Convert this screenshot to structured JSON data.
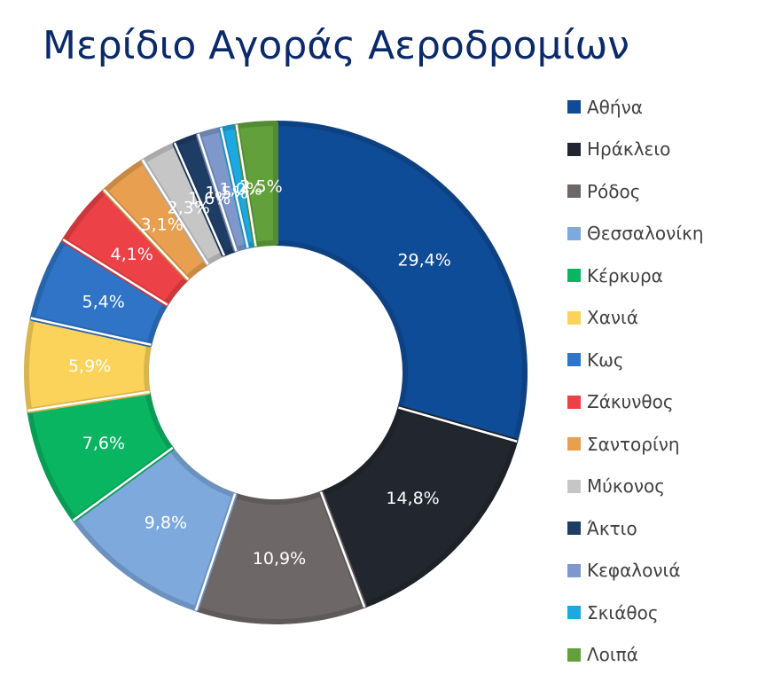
{
  "chart_data": {
    "type": "pie",
    "title": "Μερίδιο Αγοράς Αεροδρομίων",
    "categories": [
      "Αθήνα",
      "Ηράκλειο",
      "Ρόδος",
      "Θεσσαλονίκη",
      "Κέρκυρα",
      "Χανιά",
      "Κως",
      "Ζάκυνθος",
      "Σαντορίνη",
      "Μύκονος",
      "Άκτιο",
      "Κεφαλονιά",
      "Σκιάθος",
      "Λοιπά"
    ],
    "values": [
      29.4,
      14.8,
      10.9,
      9.8,
      7.6,
      5.9,
      5.4,
      4.1,
      3.1,
      2.3,
      1.6,
      1.5,
      1.0,
      2.5
    ],
    "data_labels": [
      "29,4%",
      "14,8%",
      "10,9%",
      "9,8%",
      "7,6%",
      "5,9%",
      "5,4%",
      "4,1%",
      "3,1%",
      "2,3%",
      "1,6%",
      "1,5%",
      "1,0%",
      "2,5%"
    ],
    "colors": [
      "#0f4c97",
      "#22262e",
      "#6e6767",
      "#7ea9dd",
      "#0ab562",
      "#fcd35a",
      "#2f74c6",
      "#ec4146",
      "#e89f4f",
      "#c6c6c6",
      "#1e3d64",
      "#7f98cc",
      "#1ca8e0",
      "#61a03a"
    ],
    "donut": true,
    "legend_position": "right"
  }
}
